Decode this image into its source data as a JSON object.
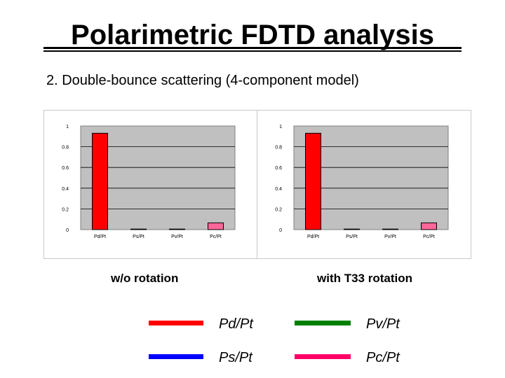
{
  "title": "Polarimetric FDTD analysis",
  "subtitle": "2. Double-bounce scattering (4-component model)",
  "captions": {
    "left": "w/o rotation",
    "right": "with T33 rotation"
  },
  "legend": [
    {
      "label": "Pd/Pt",
      "color": "#ff0000"
    },
    {
      "label": "Pv/Pt",
      "color": "#008000"
    },
    {
      "label": "Ps/Pt",
      "color": "#0000ff"
    },
    {
      "label": "Pc/Pt",
      "color": "#ff0066"
    }
  ],
  "chart_data": [
    {
      "type": "bar",
      "categories": [
        "Pd/Pt",
        "Ps/Pt",
        "Pv/Pt",
        "Pc/Pt"
      ],
      "values": [
        0.93,
        0.0,
        0.005,
        0.065
      ],
      "colors": [
        "#ff0000",
        "#0000ff",
        "#008000",
        "#ff6699"
      ],
      "ylim": [
        0,
        1
      ],
      "yticks": [
        "0",
        "0.2",
        "0.4",
        "0.6",
        "0.8",
        "1"
      ],
      "grid": true
    },
    {
      "type": "bar",
      "categories": [
        "Pd/Pt",
        "Ps/Pt",
        "Pv/Pt",
        "Pc/Pt"
      ],
      "values": [
        0.93,
        0.0,
        0.005,
        0.065
      ],
      "colors": [
        "#ff0000",
        "#0000ff",
        "#008000",
        "#ff6699"
      ],
      "ylim": [
        0,
        1
      ],
      "yticks": [
        "0",
        "0.2",
        "0.4",
        "0.6",
        "0.8",
        "1"
      ],
      "grid": true
    }
  ]
}
